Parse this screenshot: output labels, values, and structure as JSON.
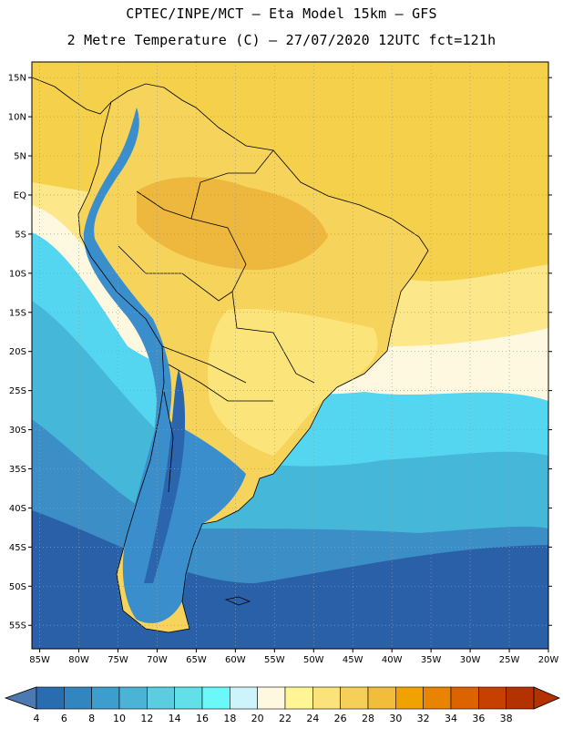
{
  "header": {
    "line1": "CPTEC/INPE/MCT –  Eta Model 15km – GFS",
    "line2": "2 Metre Temperature (C) – 27/07/2020 12UTC fct=121h"
  },
  "map": {
    "lat_labels": [
      "15N",
      "10N",
      "5N",
      "EQ",
      "5S",
      "10S",
      "15S",
      "20S",
      "25S",
      "30S",
      "35S",
      "40S",
      "45S",
      "50S",
      "55S"
    ],
    "lon_labels": [
      "85W",
      "80W",
      "75W",
      "70W",
      "65W",
      "60W",
      "55W",
      "50W",
      "45W",
      "40W",
      "35W",
      "30W",
      "25W",
      "20W"
    ],
    "lat_range": [
      -58,
      17
    ],
    "lon_range": [
      -86,
      -20
    ],
    "grid": true
  },
  "colorbar": {
    "labels": [
      "4",
      "6",
      "8",
      "10",
      "12",
      "14",
      "16",
      "18",
      "20",
      "22",
      "24",
      "26",
      "28",
      "30",
      "32",
      "34",
      "36",
      "38"
    ],
    "colors": [
      "#2a6cb0",
      "#3385c0",
      "#3d9dcc",
      "#4cb3d6",
      "#5ccce0",
      "#62e0ea",
      "#6af8f8",
      "#cdf3fb",
      "#fff8e0",
      "#fff596",
      "#fbe27a",
      "#f5cf58",
      "#f1bd3a",
      "#f0a300",
      "#e98400",
      "#dd6200",
      "#c84000",
      "#b43200"
    ],
    "under_color": "#4d79b2",
    "over_color": "#b43200"
  },
  "field_colors": {
    "ocean_north": "#f5d04a",
    "ocean_warm": "#fce88a",
    "ocean_light": "#fff8e0",
    "ocean_mid": "#55d6f0",
    "ocean_cool": "#45b7d9",
    "ocean_cold": "#3b8fc6",
    "ocean_deep": "#2a60a8",
    "land_amazon": "#eeb83f",
    "land_savanna": "#f6d45c",
    "land_south": "#fbe57a",
    "andes": "#3a8ecc",
    "andes_high": "#2b65ad",
    "patagonia": "#3a8ecc"
  }
}
